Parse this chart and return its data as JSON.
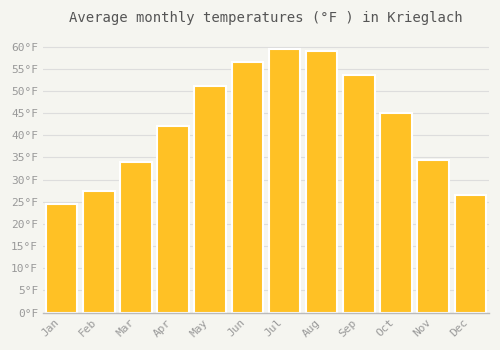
{
  "title": "Average monthly temperatures (°F ) in Krieglach",
  "months": [
    "Jan",
    "Feb",
    "Mar",
    "Apr",
    "May",
    "Jun",
    "Jul",
    "Aug",
    "Sep",
    "Oct",
    "Nov",
    "Dec"
  ],
  "values": [
    24.5,
    27.5,
    34.0,
    42.0,
    51.0,
    56.5,
    59.5,
    59.0,
    53.5,
    45.0,
    34.5,
    26.5
  ],
  "bar_color": "#FFC125",
  "bar_edge_color": "#FFFFFF",
  "background_color": "#F5F5F0",
  "grid_color": "#DDDDDD",
  "text_color": "#999999",
  "title_color": "#555555",
  "spine_color": "#BBBBBB",
  "ylim": [
    0,
    63
  ],
  "yticks": [
    0,
    5,
    10,
    15,
    20,
    25,
    30,
    35,
    40,
    45,
    50,
    55,
    60
  ],
  "title_fontsize": 10,
  "tick_fontsize": 8
}
